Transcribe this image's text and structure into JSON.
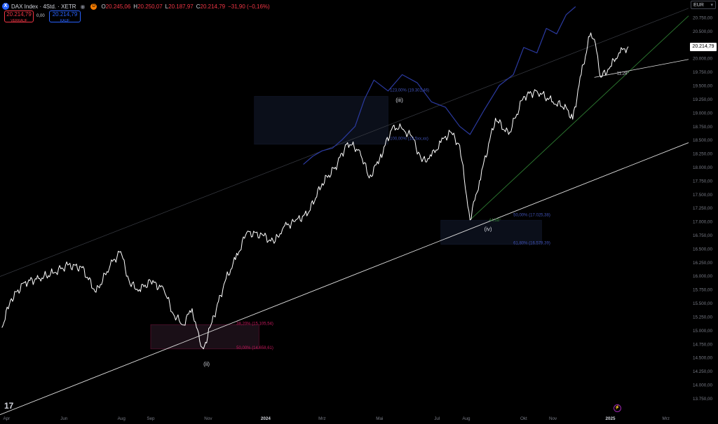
{
  "header": {
    "symbol": "DAX Index · 4Std. · XETR",
    "badge": "D",
    "ohlc": [
      {
        "key": "O",
        "value": "20.245,06"
      },
      {
        "key": "H",
        "value": "20.250,07"
      },
      {
        "key": "L",
        "value": "20.187,97"
      },
      {
        "key": "C",
        "value": "20.214,79"
      }
    ],
    "change": "−31,90 (−0,16%)"
  },
  "trade": {
    "sell_price": "20.214,79",
    "sell_label": "VERKAUF",
    "spread": "0,00",
    "buy_price": "20.214,79",
    "buy_label": "KAUF"
  },
  "currency": "EUR",
  "last_price_label": "20.214,79",
  "colors": {
    "background": "#000000",
    "price": "#ffffff",
    "overlay": "#2b3aa0",
    "support": "#e0e0e0",
    "trend": "#2e7d32",
    "zone": "#131722",
    "red_fib": "#c2185b",
    "blue_fib": "#3f51b5",
    "axis_text": "#787b86"
  },
  "chart_data": {
    "type": "line",
    "title": "DAX Index · 4Std. · XETR",
    "xlabel": "",
    "ylabel": "",
    "x_ticks": [
      "Apr",
      "Jun",
      "Aug",
      "Sep",
      "Nov",
      "2024",
      "Mrz",
      "Mai",
      "Jul",
      "Aug",
      "Okt",
      "Nov",
      "2025",
      "Mrz"
    ],
    "y_ticks": [
      "13.750,00",
      "14.000,00",
      "14.250,00",
      "14.500,00",
      "14.750,00",
      "15.000,00",
      "15.250,00",
      "15.500,00",
      "15.750,00",
      "16.000,00",
      "16.250,00",
      "16.500,00",
      "16.750,00",
      "17.000,00",
      "17.250,00",
      "17.500,00",
      "17.750,00",
      "18.000,00",
      "18.250,00",
      "18.500,00",
      "18.750,00",
      "19.000,00",
      "19.250,00",
      "19.500,00",
      "19.750,00",
      "20.000,00",
      "20.250,00",
      "20.500,00",
      "20.750,00"
    ],
    "ylim": [
      13600,
      20950
    ],
    "grid": false,
    "series": [
      {
        "values": [
          [
            "2023-03-27",
            15050
          ],
          [
            "2023-04-05",
            15550
          ],
          [
            "2023-04-20",
            15880
          ],
          [
            "2023-05-05",
            15950
          ],
          [
            "2023-05-20",
            16050
          ],
          [
            "2023-06-05",
            16200
          ],
          [
            "2023-06-20",
            16150
          ],
          [
            "2023-07-05",
            15700
          ],
          [
            "2023-07-20",
            16200
          ],
          [
            "2023-07-31",
            16450
          ],
          [
            "2023-08-10",
            15850
          ],
          [
            "2023-08-20",
            15750
          ],
          [
            "2023-09-01",
            15900
          ],
          [
            "2023-09-15",
            15750
          ],
          [
            "2023-09-25",
            15300
          ],
          [
            "2023-10-05",
            15100
          ],
          [
            "2023-10-15",
            15400
          ],
          [
            "2023-10-23",
            14800
          ],
          [
            "2023-10-27",
            14660
          ],
          [
            "2023-11-05",
            15150
          ],
          [
            "2023-11-20",
            15950
          ],
          [
            "2023-11-30",
            16300
          ],
          [
            "2023-12-12",
            16800
          ],
          [
            "2023-12-29",
            16750
          ],
          [
            "2024-01-10",
            16600
          ],
          [
            "2024-01-20",
            16900
          ],
          [
            "2024-02-01",
            17000
          ],
          [
            "2024-02-15",
            17150
          ],
          [
            "2024-03-01",
            17700
          ],
          [
            "2024-03-15",
            18000
          ],
          [
            "2024-03-28",
            18450
          ],
          [
            "2024-04-10",
            18300
          ],
          [
            "2024-04-20",
            17800
          ],
          [
            "2024-05-01",
            18150
          ],
          [
            "2024-05-15",
            18750
          ],
          [
            "2024-05-25",
            18700
          ],
          [
            "2024-06-05",
            18550
          ],
          [
            "2024-06-15",
            18100
          ],
          [
            "2024-06-25",
            18200
          ],
          [
            "2024-07-05",
            18450
          ],
          [
            "2024-07-15",
            18650
          ],
          [
            "2024-07-25",
            18400
          ],
          [
            "2024-08-05",
            17030
          ],
          [
            "2024-08-15",
            17750
          ],
          [
            "2024-09-01",
            18900
          ],
          [
            "2024-09-15",
            18600
          ],
          [
            "2024-10-01",
            19300
          ],
          [
            "2024-10-15",
            19400
          ],
          [
            "2024-11-01",
            19200
          ],
          [
            "2024-11-15",
            19100
          ],
          [
            "2024-11-22",
            18880
          ],
          [
            "2024-12-01",
            19700
          ],
          [
            "2024-12-10",
            20400
          ],
          [
            "2024-12-15",
            20350
          ],
          [
            "2024-12-22",
            19650
          ],
          [
            "2025-01-01",
            19850
          ],
          [
            "2025-01-10",
            20100
          ],
          [
            "2025-01-20",
            20214.79
          ]
        ]
      },
      {
        "values": [
          [
            "2024-02-10",
            18050
          ],
          [
            "2024-02-20",
            18200
          ],
          [
            "2024-03-01",
            18300
          ],
          [
            "2024-03-12",
            18350
          ],
          [
            "2024-03-22",
            18500
          ],
          [
            "2024-04-05",
            18750
          ],
          [
            "2024-04-15",
            19250
          ],
          [
            "2024-04-25",
            19600
          ],
          [
            "2024-05-10",
            19400
          ],
          [
            "2024-05-25",
            19700
          ],
          [
            "2024-06-10",
            19550
          ],
          [
            "2024-06-25",
            19200
          ],
          [
            "2024-07-10",
            19100
          ],
          [
            "2024-07-25",
            18750
          ],
          [
            "2024-08-05",
            18600
          ],
          [
            "2024-08-20",
            19050
          ],
          [
            "2024-09-05",
            19500
          ],
          [
            "2024-09-20",
            19700
          ],
          [
            "2024-10-01",
            20200
          ],
          [
            "2024-10-15",
            20100
          ],
          [
            "2024-10-25",
            20550
          ],
          [
            "2024-11-05",
            20450
          ],
          [
            "2024-11-15",
            20800
          ],
          [
            "2024-11-25",
            20950
          ]
        ]
      }
    ],
    "annotations": [
      {
        "text": "(ii)",
        "x": "2023-10-27",
        "y": 14350
      },
      {
        "text": "(iii)",
        "x": "2024-05-18",
        "y": 19200
      },
      {
        "text": "(iv)",
        "x": "2024-08-20",
        "y": 16830
      },
      {
        "text": "123,00% (19.301,46)",
        "x": "2024-05-12",
        "y": 19390
      },
      {
        "text": "100,00% (18.5xx,xx)",
        "x": "2024-05-12",
        "y": 18500
      },
      {
        "text": "50,00% (17.025,38)",
        "x": "2024-09-20",
        "y": 17100
      },
      {
        "text": "61,80% (16.579,39)",
        "x": "2024-09-20",
        "y": 16580
      },
      {
        "text": "38,20% (15.105,54)",
        "x": "2023-12-01",
        "y": 15100
      },
      {
        "text": "50,00% (14.658,61)",
        "x": "2023-12-01",
        "y": 14660
      },
      {
        "text": "44,68°",
        "x": "2024-08-25",
        "y": 17000
      },
      {
        "text": "11,28°",
        "x": "2025-01-08",
        "y": 19700
      }
    ]
  }
}
